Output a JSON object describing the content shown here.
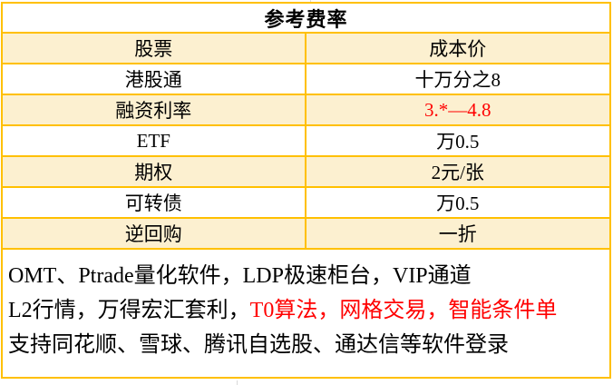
{
  "table": {
    "title": "参考费率",
    "rows": [
      {
        "label": "股票",
        "value": "成本价"
      },
      {
        "label": "港股通",
        "value": "十万分之8"
      },
      {
        "label": "融资利率",
        "value": "3.*—4.8",
        "highlight": true
      },
      {
        "label": "ETF",
        "value": "万0.5"
      },
      {
        "label": "期权",
        "value": "2元/张"
      },
      {
        "label": "可转债",
        "value": "万0.5"
      },
      {
        "label": "逆回购",
        "value": "一折"
      }
    ]
  },
  "notes": {
    "line1": "OMT、Ptrade量化软件，LDP极速柜台，VIP通道",
    "line2_prefix": "L2行情，万得宏汇套利，",
    "line2_highlight": "T0算法，网格交易，智能条件单",
    "line3": "支持同花顺、雪球、腾讯自选股、通达信等软件登录"
  },
  "colors": {
    "border_gold": "#FFC000",
    "row_fill_cream": "#FCF0D0",
    "highlight_red": "#FF0000",
    "text_black": "#000000",
    "gridline_grey": "#D9D9D9"
  }
}
